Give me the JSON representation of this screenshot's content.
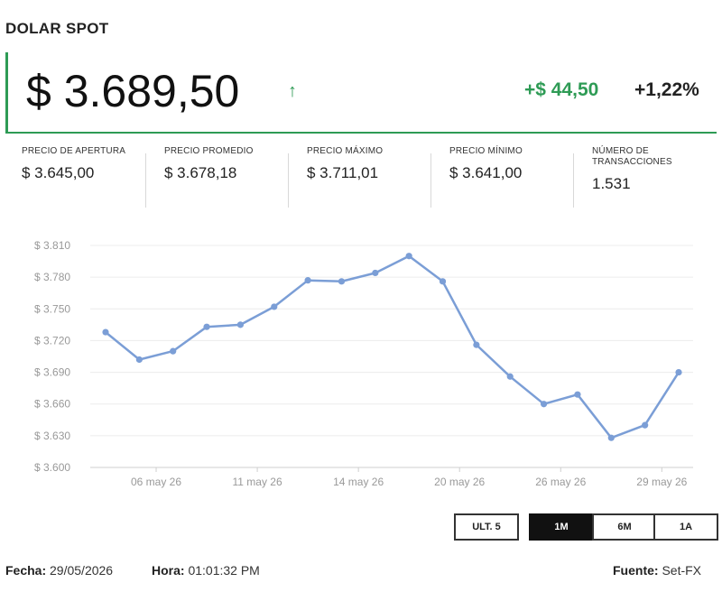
{
  "header": {
    "title": "DOLAR SPOT"
  },
  "quote": {
    "price": "$ 3.689,50",
    "change": "+$ 44,50",
    "change_pct": "+1,22%",
    "up_color": "#2e9b55"
  },
  "stats": [
    {
      "label": "PRECIO DE APERTURA",
      "value": "$ 3.645,00"
    },
    {
      "label": "PRECIO PROMEDIO",
      "value": "$ 3.678,18"
    },
    {
      "label": "PRECIO MÁXIMO",
      "value": "$ 3.711,01"
    },
    {
      "label": "PRECIO MÍNIMO",
      "value": "$ 3.641,00"
    },
    {
      "label": "NÚMERO DE TRANSACCIONES",
      "value": "1.531"
    }
  ],
  "chart_data": {
    "type": "line",
    "y_tick_labels": [
      "$ 3.810",
      "$ 3.780",
      "$ 3.750",
      "$ 3.720",
      "$ 3.690",
      "$ 3.660",
      "$ 3.630",
      "$ 3.600"
    ],
    "ylim": [
      3600,
      3810
    ],
    "x_tick_labels": [
      "06 may 26",
      "11 may 26",
      "14 may 26",
      "20 may 26",
      "26 may 26",
      "29 may 26"
    ],
    "x_tick_positions": [
      1.5,
      4.5,
      7.5,
      10.5,
      13.5,
      16.5
    ],
    "grid": true,
    "line_color": "#7b9ed6",
    "series": [
      {
        "values": [
          3728,
          3702,
          3710,
          3733,
          3735,
          3752,
          3777,
          3776,
          3784,
          3800,
          3776,
          3716,
          3686,
          3660,
          3669,
          3628,
          3640,
          3690
        ]
      }
    ]
  },
  "range_buttons": [
    {
      "label": "ULT. 5",
      "active": false
    },
    {
      "label": "1M",
      "active": true
    },
    {
      "label": "6M",
      "active": false
    },
    {
      "label": "1A",
      "active": false
    }
  ],
  "footer": {
    "date_label": "Fecha:",
    "date_value": "29/05/2026",
    "time_label": "Hora:",
    "time_value": "01:01:32 PM",
    "source_label": "Fuente:",
    "source_value": "Set-FX"
  }
}
